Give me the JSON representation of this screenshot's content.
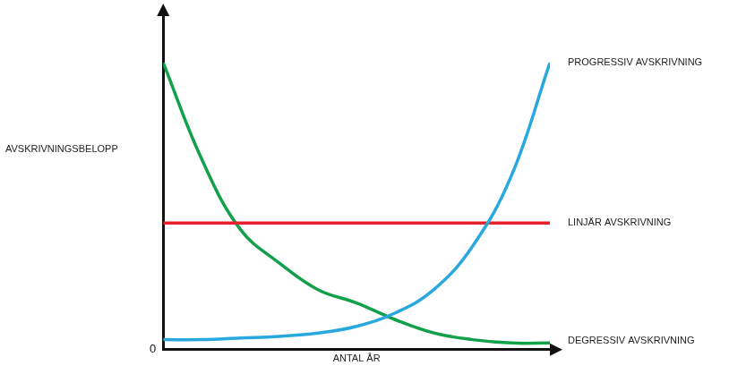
{
  "chart_data": {
    "type": "line",
    "x_label": "ANTAL ÅR",
    "y_label": "AVSKRIVNINGSBELOPP",
    "x": [
      0,
      1,
      2,
      3,
      4,
      5,
      6,
      7,
      8,
      9,
      10
    ],
    "xlim": [
      0,
      10
    ],
    "ylim": [
      0,
      100
    ],
    "yticks": [
      0
    ],
    "tick_labels": "y",
    "grid": false,
    "series": [
      {
        "name": "PROGRESSIV AVSKRIVNING",
        "color": "#29a8e0",
        "values": [
          3,
          3,
          3.5,
          4,
          5,
          7,
          11,
          18,
          31,
          52,
          86
        ]
      },
      {
        "name": "LINJÄR AVSKRIVNING",
        "color": "#e8202a",
        "values": [
          38,
          38,
          38,
          38,
          38,
          38,
          38,
          38,
          38,
          38,
          38
        ]
      },
      {
        "name": "DEGRESSIV AVSKRIVNING",
        "color": "#12a04a",
        "values": [
          86,
          57,
          36,
          26,
          18,
          14,
          9,
          5,
          3,
          2,
          2
        ]
      }
    ]
  }
}
